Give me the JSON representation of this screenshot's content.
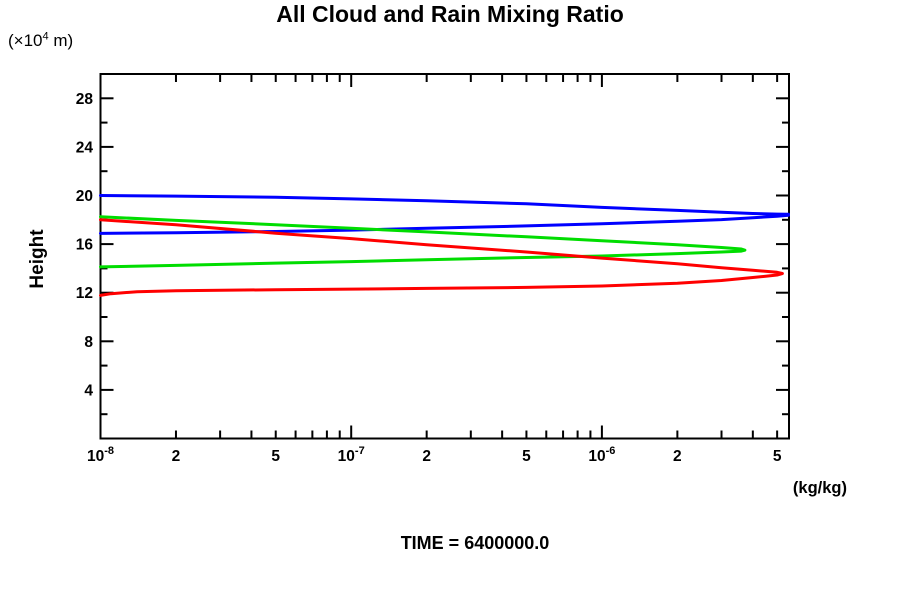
{
  "title": "All Cloud and Rain Mixing Ratio",
  "time_label": "TIME = 6400000.0",
  "y_axis": {
    "name": "Height",
    "unit_pre": "(×10",
    "unit_sup": "4",
    "unit_post": " m)",
    "range": [
      0,
      30
    ],
    "major_ticks": [
      4,
      8,
      12,
      16,
      20,
      24,
      28
    ],
    "minor_ticks": [
      2,
      6,
      10,
      14,
      18,
      22,
      26,
      30
    ]
  },
  "x_axis": {
    "unit": "(kg/kg)",
    "scale": "log",
    "range": [
      1e-08,
      5.6e-06
    ],
    "labeled_ticks": [
      {
        "v": 1e-08,
        "base": "10",
        "sup": "-8"
      },
      {
        "v": 2e-08,
        "base": "2"
      },
      {
        "v": 5e-08,
        "base": "5"
      },
      {
        "v": 1e-07,
        "base": "10",
        "sup": "-7"
      },
      {
        "v": 2e-07,
        "base": "2"
      },
      {
        "v": 5e-07,
        "base": "5"
      },
      {
        "v": 1e-06,
        "base": "10",
        "sup": "-6"
      },
      {
        "v": 2e-06,
        "base": "2"
      },
      {
        "v": 5e-06,
        "base": "5"
      }
    ]
  },
  "chart_data": {
    "type": "line",
    "title": "All Cloud and Rain Mixing Ratio",
    "xlabel": "(kg/kg)",
    "ylabel": "Height (×10⁴ m)",
    "x_scale": "log",
    "xlim": [
      1e-08,
      5.6e-06
    ],
    "ylim": [
      0,
      30
    ],
    "grid": false,
    "legend": "none",
    "annotation": "TIME = 6400000.0",
    "series": [
      {
        "name": "blue-profile",
        "color": "#0000ff",
        "points": [
          [
            1e-08,
            20.0
          ],
          [
            2e-08,
            19.95
          ],
          [
            5e-08,
            19.85
          ],
          [
            1e-07,
            19.72
          ],
          [
            2e-07,
            19.57
          ],
          [
            5e-07,
            19.32
          ],
          [
            1e-06,
            19.02
          ],
          [
            2e-06,
            18.77
          ],
          [
            3e-06,
            18.62
          ],
          [
            4e-06,
            18.52
          ],
          [
            5e-06,
            18.47
          ],
          [
            5.55e-06,
            18.45
          ],
          [
            5.55e-06,
            18.38
          ],
          [
            5e-06,
            18.3
          ],
          [
            4e-06,
            18.17
          ],
          [
            3e-06,
            18.02
          ],
          [
            2e-06,
            17.88
          ],
          [
            1e-06,
            17.68
          ],
          [
            5e-07,
            17.5
          ],
          [
            2e-07,
            17.3
          ],
          [
            1e-07,
            17.15
          ],
          [
            5e-08,
            17.04
          ],
          [
            2e-08,
            16.94
          ],
          [
            1e-08,
            16.88
          ]
        ]
      },
      {
        "name": "green-profile",
        "color": "#00dd00",
        "points": [
          [
            1e-08,
            18.25
          ],
          [
            2e-08,
            17.95
          ],
          [
            5e-08,
            17.6
          ],
          [
            1e-07,
            17.3
          ],
          [
            2e-07,
            17.0
          ],
          [
            5e-07,
            16.6
          ],
          [
            1e-06,
            16.28
          ],
          [
            2e-06,
            15.95
          ],
          [
            3e-06,
            15.72
          ],
          [
            3.6e-06,
            15.6
          ],
          [
            3.72e-06,
            15.5
          ],
          [
            3.6e-06,
            15.42
          ],
          [
            3e-06,
            15.35
          ],
          [
            2e-06,
            15.22
          ],
          [
            1e-06,
            15.02
          ],
          [
            5e-07,
            14.9
          ],
          [
            2e-07,
            14.72
          ],
          [
            1e-07,
            14.56
          ],
          [
            5e-08,
            14.44
          ],
          [
            2e-08,
            14.25
          ],
          [
            1e-08,
            14.12
          ]
        ]
      },
      {
        "name": "red-profile",
        "color": "#ff0000",
        "points": [
          [
            1e-08,
            18.0
          ],
          [
            2e-08,
            17.6
          ],
          [
            5e-08,
            16.9
          ],
          [
            1e-07,
            16.45
          ],
          [
            2e-07,
            15.95
          ],
          [
            5e-07,
            15.35
          ],
          [
            1e-06,
            14.85
          ],
          [
            2e-06,
            14.38
          ],
          [
            3e-06,
            14.06
          ],
          [
            4e-06,
            13.85
          ],
          [
            5e-06,
            13.68
          ],
          [
            5.25e-06,
            13.58
          ],
          [
            5e-06,
            13.46
          ],
          [
            4.5e-06,
            13.36
          ],
          [
            4e-06,
            13.25
          ],
          [
            3e-06,
            13.0
          ],
          [
            2e-06,
            12.78
          ],
          [
            1e-06,
            12.55
          ],
          [
            5e-07,
            12.44
          ],
          [
            2e-07,
            12.35
          ],
          [
            1e-07,
            12.3
          ],
          [
            5e-08,
            12.25
          ],
          [
            2e-08,
            12.16
          ],
          [
            1.4e-08,
            12.08
          ],
          [
            1.1e-08,
            11.92
          ],
          [
            1e-08,
            11.78
          ]
        ]
      }
    ]
  }
}
